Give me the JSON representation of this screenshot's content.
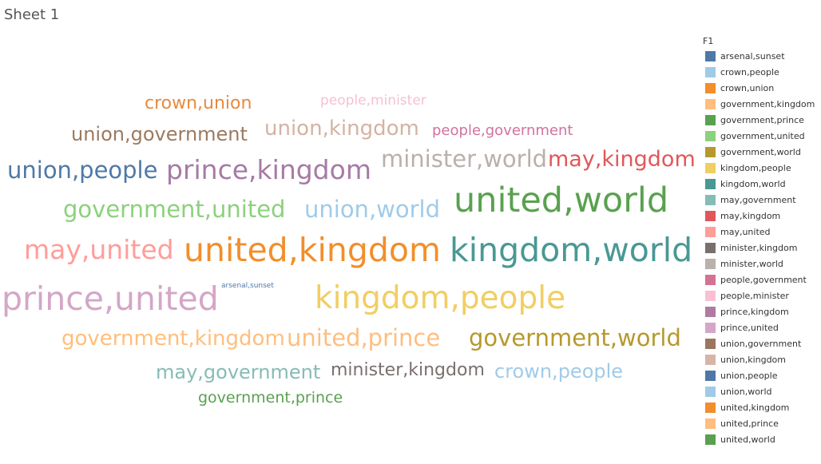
{
  "sheet": {
    "title": "Sheet 1"
  },
  "chart_data": {
    "type": "word-cloud",
    "legend_title": "F1",
    "legend_placement": "right",
    "words": [
      {
        "text": "crown,union",
        "color": "#e88a3c"
      },
      {
        "text": "people,minister",
        "color": "#f6c1d3"
      },
      {
        "text": "union,government",
        "color": "#9c7a5f"
      },
      {
        "text": "union,kingdom",
        "color": "#d4b3a2"
      },
      {
        "text": "people,government",
        "color": "#d1729f"
      },
      {
        "text": "union,people",
        "color": "#4e79a7"
      },
      {
        "text": "prince,kingdom",
        "color": "#a67ba4"
      },
      {
        "text": "minister,world",
        "color": "#bab0ac"
      },
      {
        "text": "may,kingdom",
        "color": "#e15759"
      },
      {
        "text": "government,united",
        "color": "#8cd17d"
      },
      {
        "text": "union,world",
        "color": "#a0cbe8"
      },
      {
        "text": "united,world",
        "color": "#59a14f"
      },
      {
        "text": "may,united",
        "color": "#ff9d9a"
      },
      {
        "text": "united,kingdom",
        "color": "#f28e2b"
      },
      {
        "text": "kingdom,world",
        "color": "#499894"
      },
      {
        "text": "prince,united",
        "color": "#d4a6c8"
      },
      {
        "text": "arsenal,sunset",
        "color": "#4e79a7"
      },
      {
        "text": "kingdom,people",
        "color": "#f1ce63"
      },
      {
        "text": "government,kingdom",
        "color": "#ffbe7d"
      },
      {
        "text": "united,prince",
        "color": "#ffbe7d"
      },
      {
        "text": "government,world",
        "color": "#b6992d"
      },
      {
        "text": "may,government",
        "color": "#86bcb6"
      },
      {
        "text": "minister,kingdom",
        "color": "#79706e"
      },
      {
        "text": "crown,people",
        "color": "#a0cbe8"
      },
      {
        "text": "government,prince",
        "color": "#59a14f"
      }
    ],
    "legend": [
      {
        "label": "arsenal,sunset",
        "color": "#4e79a7"
      },
      {
        "label": "crown,people",
        "color": "#a0cbe8"
      },
      {
        "label": "crown,union",
        "color": "#f28e2b"
      },
      {
        "label": "government,kingdom",
        "color": "#ffbe7d"
      },
      {
        "label": "government,prince",
        "color": "#59a14f"
      },
      {
        "label": "government,united",
        "color": "#8cd17d"
      },
      {
        "label": "government,world",
        "color": "#b6992d"
      },
      {
        "label": "kingdom,people",
        "color": "#f1ce63"
      },
      {
        "label": "kingdom,world",
        "color": "#499894"
      },
      {
        "label": "may,government",
        "color": "#86bcb6"
      },
      {
        "label": "may,kingdom",
        "color": "#e15759"
      },
      {
        "label": "may,united",
        "color": "#ff9d9a"
      },
      {
        "label": "minister,kingdom",
        "color": "#79706e"
      },
      {
        "label": "minister,world",
        "color": "#bab0ac"
      },
      {
        "label": "people,government",
        "color": "#d37295"
      },
      {
        "label": "people,minister",
        "color": "#fabfd2"
      },
      {
        "label": "prince,kingdom",
        "color": "#b07aa1"
      },
      {
        "label": "prince,united",
        "color": "#d4a6c8"
      },
      {
        "label": "union,government",
        "color": "#9d7660"
      },
      {
        "label": "union,kingdom",
        "color": "#d7b5a6"
      },
      {
        "label": "union,people",
        "color": "#4e79a7"
      },
      {
        "label": "union,world",
        "color": "#a0cbe8"
      },
      {
        "label": "united,kingdom",
        "color": "#f28e2b"
      },
      {
        "label": "united,prince",
        "color": "#ffbe7d"
      },
      {
        "label": "united,world",
        "color": "#59a14f"
      }
    ]
  }
}
